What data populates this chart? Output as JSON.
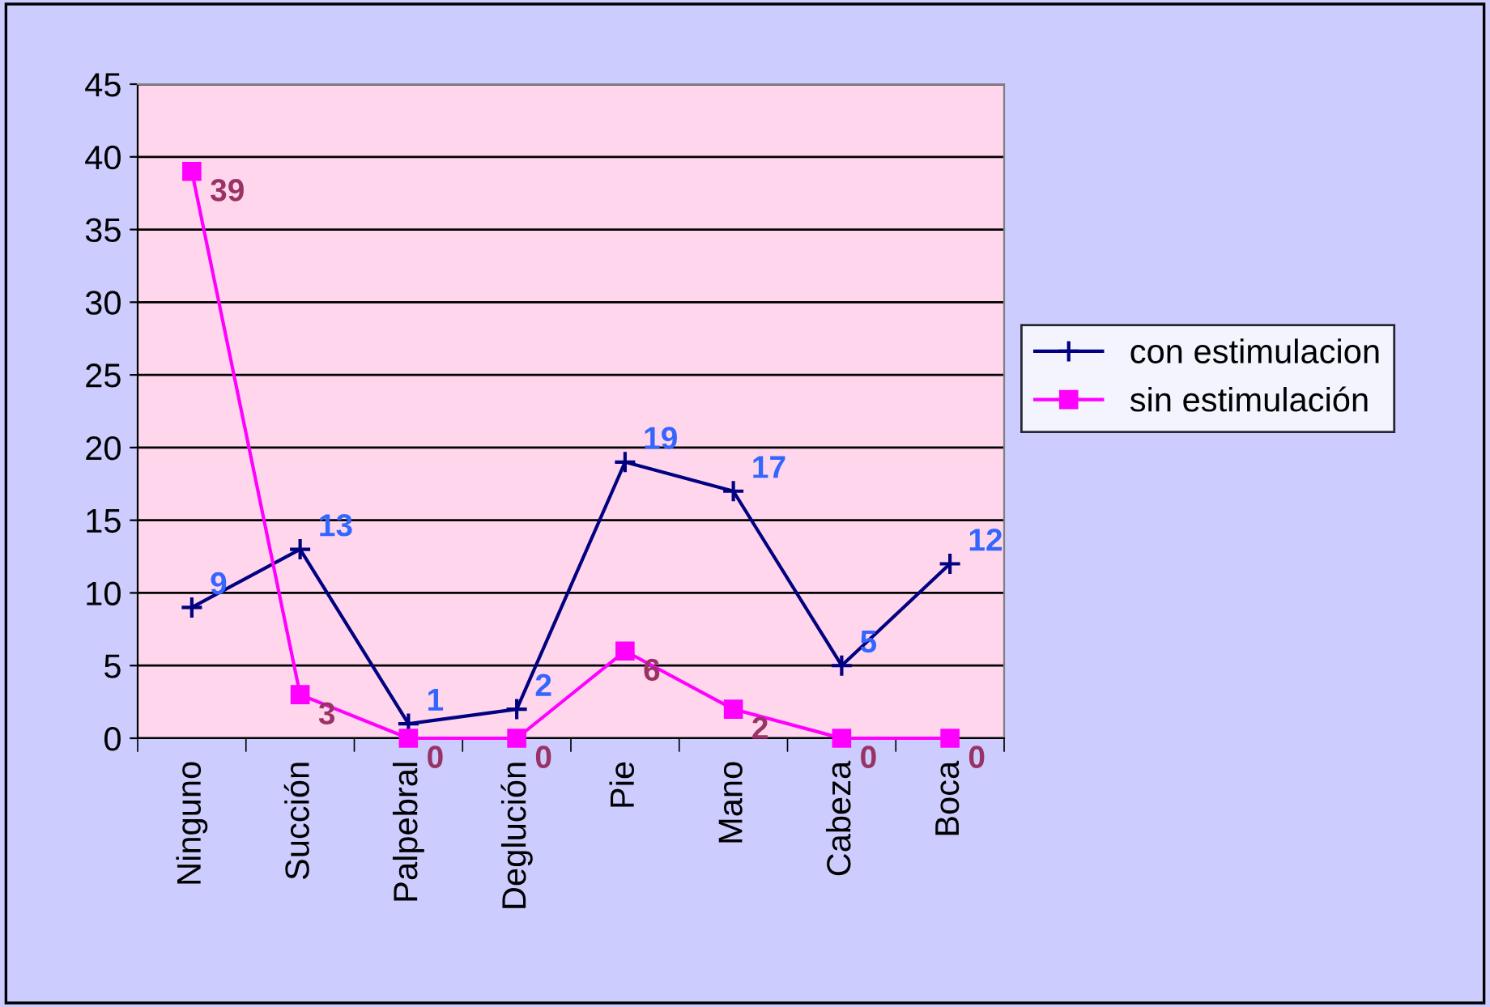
{
  "chart_data": {
    "type": "line",
    "categories": [
      "Ninguno",
      "Succión",
      "Palpebral",
      "Deglución",
      "Pie",
      "Mano",
      "Cabeza",
      "Boca"
    ],
    "series": [
      {
        "name": "con estimulacion",
        "color": "#000080",
        "marker": "cross",
        "values": [
          9,
          13,
          1,
          2,
          19,
          17,
          5,
          12
        ]
      },
      {
        "name": "sin estimulación",
        "color": "#ff00ff",
        "marker": "square",
        "values": [
          39,
          3,
          0,
          0,
          6,
          2,
          0,
          0
        ]
      }
    ],
    "ylim": [
      0,
      45
    ],
    "yticks": [
      0,
      5,
      10,
      15,
      20,
      25,
      30,
      35,
      40,
      45
    ],
    "grid": "y",
    "legend": "right",
    "data_labels": true
  }
}
